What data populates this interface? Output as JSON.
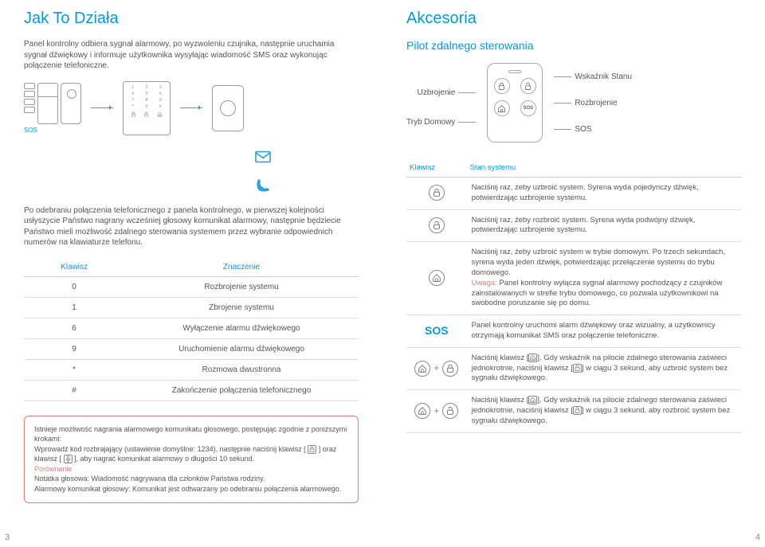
{
  "left": {
    "title": "Jak To Działa",
    "intro": "Panel kontrolny odbiera sygnał alarmowy, po wyzwoleniu czujnika, następnie uruchamia sygnał dźwiękowy i informuje użytkownika wysyłając wiadomość SMS oraz wykonując połączenie telefoniczne.",
    "sos_label": "SOS",
    "phone_desc": "Po odebraniu połączenia telefonicznego z panela kontrolnego, w pierwszej kolejności usłyszycie Państwo nagrany wcześniej głosowy komunikat alarmowy, następnie będziecie Państwo mieli możliwość zdalnego sterowania systemem przez wybranie odpowiednich numerów na klawiaturze telefonu.",
    "table": {
      "headers": [
        "Klawisz",
        "Znaczenie"
      ],
      "rows": [
        [
          "0",
          "Rozbrojenie systemu"
        ],
        [
          "1",
          "Zbrojenie systemu"
        ],
        [
          "6",
          "Wyłączenie alarmu dźwiękowego"
        ],
        [
          "9",
          "Uruchomienie alarmu dźwiękowego"
        ],
        [
          "*",
          "Rozmowa dwustronna"
        ],
        [
          "#",
          "Zakończenie połączenia telefonicznego"
        ]
      ]
    },
    "note": {
      "line1": "Istnieje możliwość nagrania alarmowego komunikatu głosowego, postępując zgodnie z poniższymi krokami:",
      "line2_a": "Wprowadź kod rozbrajający (ustawienie domyślne: 1234), następnie naciśnij klawisz [",
      "line2_b": "] oraz klawisz [",
      "line2_c": "], aby nagrać komunikat alarmowy o długości 10 sekund.",
      "cmp_label": "Porównanie",
      "cmp1": "Notatka głosowa: Wiadomość nagrywana dla członków Państwa rodziny.",
      "cmp2": "Alarmowy komunikat głosowy: Komunikat jest odtwarzany po odebraniu połączenia alarmowego."
    },
    "page_number": "3"
  },
  "right": {
    "title": "Akcesoria",
    "subtitle": "Pilot zdalnego sterowania",
    "labels": {
      "arm": "Uzbrojenie",
      "home": "Tryb Domowy",
      "disarm": "Rozbrojenie",
      "sos": "SOS",
      "status": "Wskaźnik Stanu"
    },
    "status_table": {
      "headers": [
        "Klawisz",
        "Stan systemu"
      ],
      "rows": [
        {
          "icon": "lock",
          "text": "Naciśnij raz, żeby uzbroić system. Syrena wyda pojedynczy dźwięk, potwierdzając uzbrojenie systemu."
        },
        {
          "icon": "unlock",
          "text": "Naciśnij raz, żeby rozbroić system. Syrena wyda podwójny dźwięk, potwierdzając uzbrojenie systemu."
        },
        {
          "icon": "home",
          "text_a": "Naciśnij raz, żeby uzbroić system w trybie domowym. Po trzech sekundach, syrena wyda jeden dźwięk, potwierdzając przełączenie systemu do trybu domowego.",
          "warn_label": "Uwaga:",
          "text_b": " Panel kontrolny wyłącza sygnał alarmowy pochodzący z czujników zainstalowanych w strefie trybu domowego, co pozwala użytkownikowi na swobodne poruszanie się po domu."
        },
        {
          "icon": "sos",
          "text": "Panel kontrolny uruchomi alarm dźwiękowy oraz wizualny, a użytkownicy otrzymają komunikat SMS oraz połączenie telefoniczne."
        },
        {
          "icon": "home+lock",
          "text_a": "Naciśnij klawisz [",
          "text_b": "]. Gdy wskaźnik na pilocie zdalnego sterowania zaświeci jednokrotnie, naciśnij klawisz [",
          "text_c": "] w ciągu 3 sekund, aby uzbroić system bez sygnału dźwiękowego."
        },
        {
          "icon": "home+unlock",
          "text_a": "Naciśnij klawisz [",
          "text_b": "]. Gdy wskaźnik na pilocie zdalnego sterowania zaświeci jednokrotnie, naciśnij klawisz [",
          "text_c": "] w ciągu 3 sekund, aby rozbroić system bez sygnału dźwiękowego."
        }
      ]
    },
    "page_number": "4"
  },
  "colors": {
    "accent": "#009bd8",
    "warn": "#e07a7a",
    "text": "#555555",
    "border": "#cccccc"
  }
}
